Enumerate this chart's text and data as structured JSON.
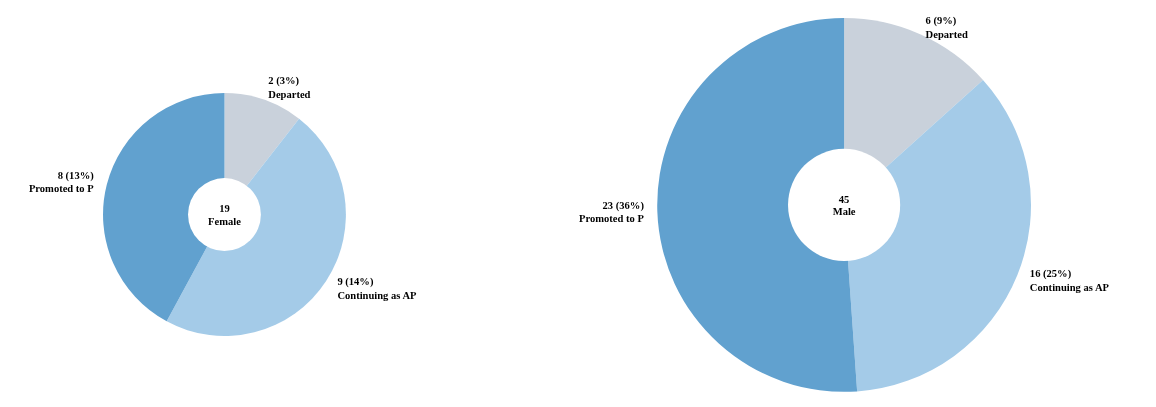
{
  "chart_data": [
    {
      "type": "donut",
      "categories": [
        "Departed",
        "Continuing as AP",
        "Promoted to P"
      ],
      "values": [
        2,
        9,
        8
      ],
      "colors": [
        "#c9d1db",
        "#a4cbe8",
        "#61a1cf"
      ],
      "value_labels": [
        "2 (3%)",
        "9 (14%)",
        "8 (13%)"
      ],
      "annotations": [
        "19",
        "Female"
      ]
    },
    {
      "type": "donut",
      "categories": [
        "Departed",
        "Continuing as AP",
        "Promoted to P"
      ],
      "values": [
        6,
        16,
        23
      ],
      "colors": [
        "#c9d1db",
        "#a4cbe8",
        "#61a1cf"
      ],
      "value_labels": [
        "6 (9%)",
        "16 (25%)",
        "23 (36%)"
      ],
      "annotations": [
        "45",
        "Male"
      ]
    }
  ]
}
